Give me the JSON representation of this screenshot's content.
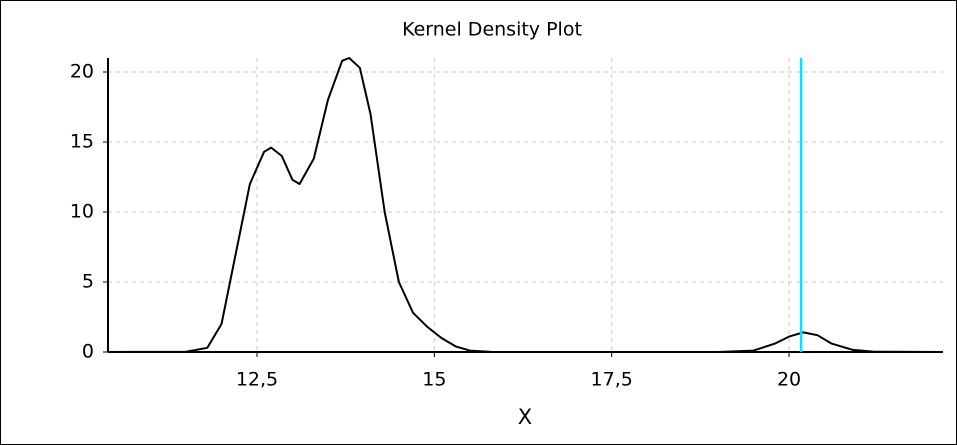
{
  "chart_data": {
    "type": "line",
    "title": "Kernel Density Plot",
    "x_label": "X",
    "x": [
      10.4,
      11.5,
      11.8,
      12.0,
      12.2,
      12.4,
      12.6,
      12.7,
      12.85,
      13.0,
      13.1,
      13.3,
      13.5,
      13.7,
      13.8,
      13.95,
      14.1,
      14.3,
      14.5,
      14.7,
      14.9,
      15.1,
      15.3,
      15.5,
      15.8,
      16.0,
      19.0,
      19.5,
      19.8,
      20.0,
      20.2,
      20.4,
      20.6,
      20.9,
      21.2,
      22.17
    ],
    "values": [
      0,
      0.02,
      0.3,
      2,
      7,
      12,
      14.3,
      14.6,
      14,
      12.3,
      12,
      13.8,
      18,
      20.8,
      21,
      20.3,
      17,
      10,
      5,
      2.8,
      1.8,
      1,
      0.4,
      0.1,
      0.01,
      0,
      0,
      0.1,
      0.6,
      1.1,
      1.4,
      1.2,
      0.6,
      0.15,
      0.02,
      0
    ],
    "color": "#000000",
    "xlim": [
      10.4,
      22.17
    ],
    "xticks": [
      {
        "value": 12.5,
        "label": "12,5"
      },
      15,
      {
        "value": 17.5,
        "label": "17,5"
      },
      20
    ],
    "ylim": [
      0,
      21
    ],
    "yticks": [
      0,
      5,
      10,
      15,
      20
    ],
    "grid": true,
    "vline": {
      "x": 20.17,
      "color": "#00e5ff"
    }
  }
}
